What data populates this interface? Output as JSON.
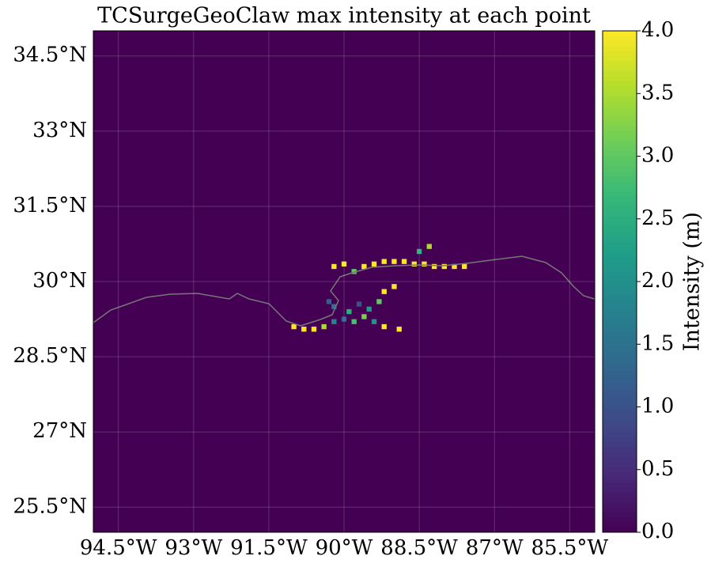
{
  "chart_data": {
    "type": "map",
    "title": "TCSurgeGeoClaw max intensity at each point",
    "xlim": [
      -95,
      -85
    ],
    "ylim": [
      25,
      35
    ],
    "xticks": [
      {
        "value": -94.5,
        "label": "94.5°W"
      },
      {
        "value": -93,
        "label": "93°W"
      },
      {
        "value": -91.5,
        "label": "91.5°W"
      },
      {
        "value": -90,
        "label": "90°W"
      },
      {
        "value": -88.5,
        "label": "88.5°W"
      },
      {
        "value": -87,
        "label": "87°W"
      },
      {
        "value": -85.5,
        "label": "85.5°W"
      }
    ],
    "yticks": [
      {
        "value": 25.5,
        "label": "25.5°N"
      },
      {
        "value": 27,
        "label": "27°N"
      },
      {
        "value": 28.5,
        "label": "28.5°N"
      },
      {
        "value": 30,
        "label": "30°N"
      },
      {
        "value": 31.5,
        "label": "31.5°N"
      },
      {
        "value": 33,
        "label": "33°N"
      },
      {
        "value": 34.5,
        "label": "34.5°N"
      }
    ],
    "grid": true,
    "colormap": "viridis",
    "clim": [
      0,
      4
    ],
    "colorbar_label": "Intensity (m)",
    "colorbar_ticks": [
      {
        "value": 0,
        "label": "0.0"
      },
      {
        "value": 0.5,
        "label": "0.5"
      },
      {
        "value": 1,
        "label": "1.0"
      },
      {
        "value": 1.5,
        "label": "1.5"
      },
      {
        "value": 2,
        "label": "2.0"
      },
      {
        "value": 2.5,
        "label": "2.5"
      },
      {
        "value": 3,
        "label": "3.0"
      },
      {
        "value": 3.5,
        "label": "3.5"
      },
      {
        "value": 4,
        "label": "4.0"
      }
    ],
    "lon": [
      -90.2,
      -90.0,
      -89.8,
      -89.6,
      -89.4,
      -89.2,
      -89.0,
      -88.8,
      -88.6,
      -88.4,
      -88.2,
      -88.0,
      -87.8,
      -87.6,
      -90.3,
      -90.2,
      -89.9,
      -89.7,
      -89.5,
      -89.3,
      -89.2,
      -89.0,
      -91.0,
      -90.8,
      -90.6,
      -90.4,
      -90.2,
      -90.0,
      -89.8,
      -89.6,
      -89.4,
      -89.2,
      -88.9,
      -88.5,
      -88.3
    ],
    "lat": [
      30.3,
      30.35,
      30.2,
      30.3,
      30.35,
      30.4,
      30.4,
      30.4,
      30.35,
      30.35,
      30.3,
      30.3,
      30.3,
      30.3,
      29.6,
      29.5,
      29.4,
      29.55,
      29.45,
      29.6,
      29.8,
      29.9,
      29.1,
      29.05,
      29.05,
      29.1,
      29.2,
      29.25,
      29.2,
      29.3,
      29.2,
      29.1,
      29.05,
      30.6,
      30.7
    ],
    "values": [
      4,
      4,
      3,
      4,
      4,
      4,
      4,
      4,
      4,
      4,
      4,
      4,
      4,
      4,
      1.2,
      1.5,
      2.5,
      1.0,
      2.2,
      3,
      4,
      4,
      4,
      4,
      4,
      3.5,
      1.8,
      1.3,
      2.8,
      3.2,
      2.0,
      4,
      4,
      2.5,
      3.5
    ]
  }
}
